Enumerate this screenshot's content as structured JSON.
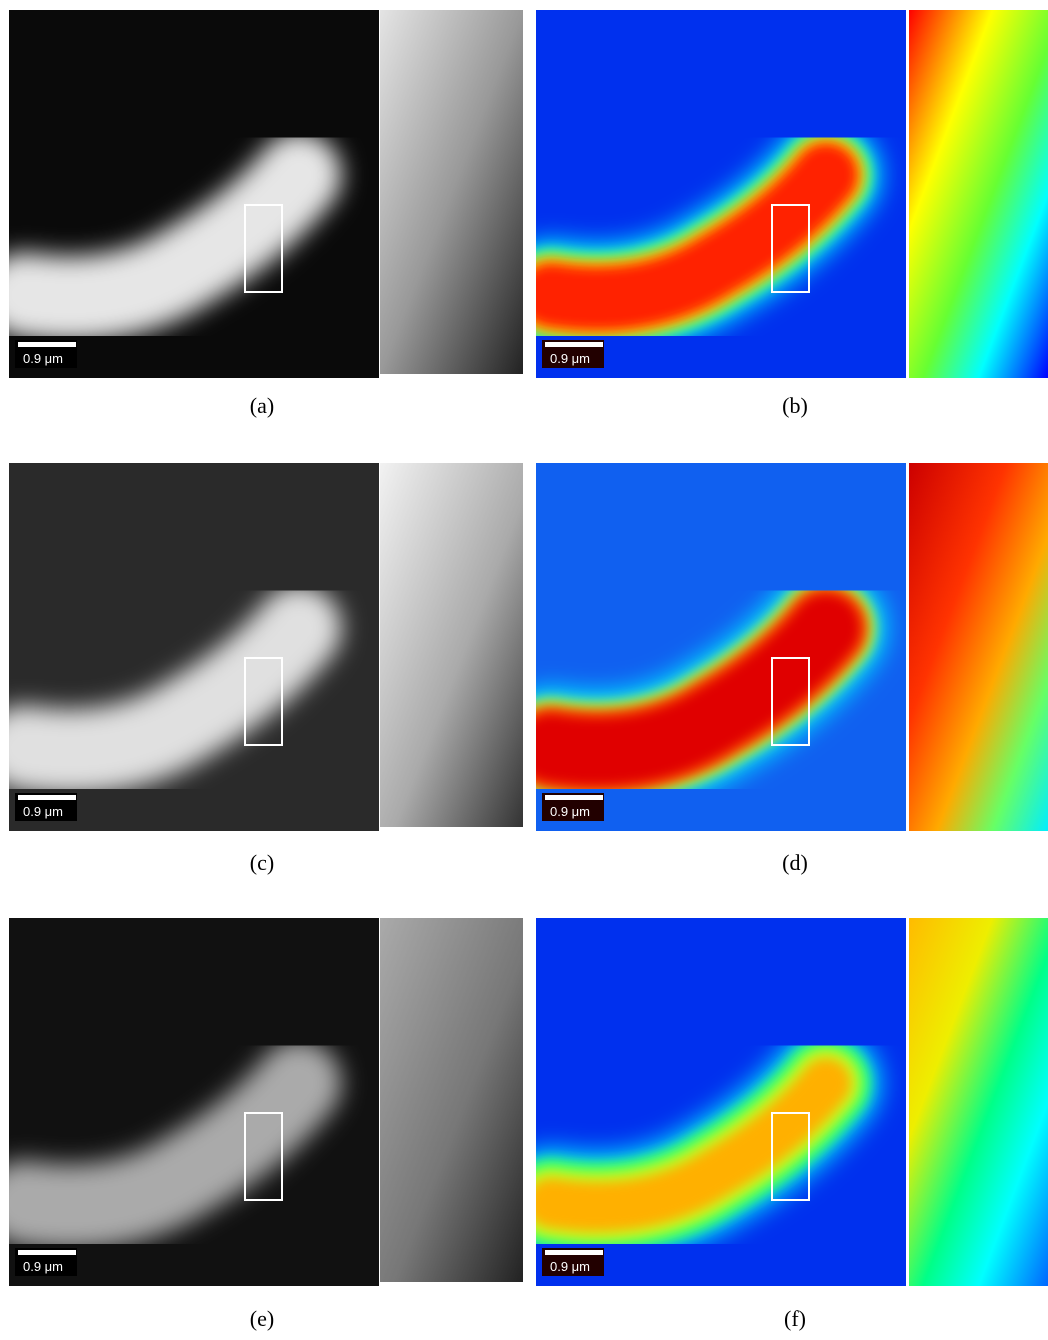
{
  "panels": [
    {
      "caption": "(a)",
      "scale_label": "0.9 μm",
      "colormap": "gray"
    },
    {
      "caption": "(b)",
      "scale_label": "0.9 μm",
      "colormap": "jet"
    },
    {
      "caption": "(c)",
      "scale_label": "0.9 μm",
      "colormap": "gray"
    },
    {
      "caption": "(d)",
      "scale_label": "0.9 μm",
      "colormap": "jet"
    },
    {
      "caption": "(e)",
      "scale_label": "0.9 μm",
      "colormap": "gray"
    },
    {
      "caption": "(f)",
      "scale_label": "0.9 μm",
      "colormap": "jet"
    }
  ]
}
